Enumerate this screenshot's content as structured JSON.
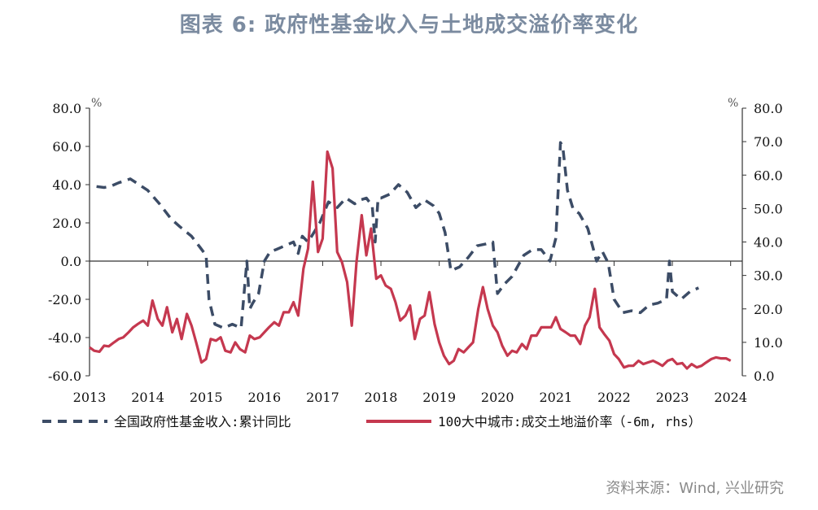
{
  "title": "图表 6: 政府性基金收入与土地成交溢价率变化",
  "source": "资料来源：Wind, 兴业研究",
  "colors": {
    "series1": "#3c4c66",
    "series2": "#c5384f",
    "axis": "#333333"
  },
  "chart_data": {
    "type": "line",
    "left_axis": {
      "unit": "%",
      "ylim": [
        -60,
        80
      ],
      "ticks": [
        "80.0",
        "60.0",
        "40.0",
        "20.0",
        "0.0",
        "-20.0",
        "-40.0",
        "-60.0"
      ]
    },
    "right_axis": {
      "unit": "%",
      "ylim": [
        0,
        80
      ],
      "ticks": [
        "80.0",
        "70.0",
        "60.0",
        "50.0",
        "40.0",
        "30.0",
        "20.0",
        "10.0",
        "0.0"
      ]
    },
    "x_axis": {
      "xlim": [
        2013,
        2024.2
      ],
      "ticks": [
        "2013",
        "2014",
        "2015",
        "2016",
        "2017",
        "2018",
        "2019",
        "2020",
        "2021",
        "2022",
        "2023",
        "2024"
      ]
    },
    "series": [
      {
        "name": "全国政府性基金收入:累计同比",
        "axis": "left",
        "style": "dashed",
        "x": [
          2013.12,
          2013.25,
          2013.35,
          2013.5,
          2013.7,
          2013.85,
          2014.0,
          2014.2,
          2014.4,
          2014.55,
          2014.75,
          2014.9,
          2015.0,
          2015.05,
          2015.15,
          2015.3,
          2015.45,
          2015.6,
          2015.7,
          2015.75,
          2015.8,
          2015.9,
          2016.0,
          2016.1,
          2016.2,
          2016.35,
          2016.5,
          2016.58,
          2016.65,
          2016.75,
          2016.85,
          2016.95,
          2017.1,
          2017.25,
          2017.4,
          2017.55,
          2017.65,
          2017.75,
          2017.85,
          2017.9,
          2017.95,
          2018.0,
          2018.15,
          2018.3,
          2018.45,
          2018.6,
          2018.75,
          2018.9,
          2019.0,
          2019.1,
          2019.2,
          2019.35,
          2019.5,
          2019.65,
          2019.8,
          2019.92,
          2020.0,
          2020.12,
          2020.25,
          2020.45,
          2020.6,
          2020.75,
          2020.9,
          2021.0,
          2021.08,
          2021.12,
          2021.2,
          2021.3,
          2021.4,
          2021.55,
          2021.7,
          2021.8,
          2021.9,
          2022.0,
          2022.15,
          2022.3,
          2022.45,
          2022.6,
          2022.75,
          2022.9,
          2022.95,
          2023.0,
          2023.15,
          2023.3,
          2023.45
        ],
        "values": [
          39,
          38.5,
          39,
          41,
          43,
          40,
          37,
          30,
          22,
          18,
          13,
          7,
          3,
          -20,
          -33,
          -35,
          -33,
          -35,
          0,
          -25,
          -22,
          -17,
          0,
          5,
          6,
          8,
          10,
          4,
          13,
          10,
          15,
          20,
          31,
          28,
          33,
          30,
          32,
          33,
          29,
          10,
          33,
          33,
          35,
          40,
          36,
          28,
          32,
          29,
          25,
          15,
          -5,
          -3,
          2,
          8,
          9,
          10,
          -17,
          -12,
          -8,
          3,
          6,
          6,
          0,
          12,
          62,
          60,
          37,
          27,
          25,
          17,
          0,
          5,
          -1,
          -20,
          -27,
          -26,
          -27,
          -23,
          -22,
          -20,
          0,
          -16,
          -20,
          -16,
          -14
        ]
      },
      {
        "name": "100大中城市:成交土地溢价率（-6m, rhs）",
        "axis": "right",
        "style": "solid",
        "x": [
          2013.0,
          2013.08,
          2013.17,
          2013.25,
          2013.33,
          2013.42,
          2013.5,
          2013.58,
          2013.67,
          2013.75,
          2013.83,
          2013.92,
          2014.0,
          2014.08,
          2014.17,
          2014.25,
          2014.33,
          2014.42,
          2014.5,
          2014.58,
          2014.67,
          2014.75,
          2014.83,
          2014.92,
          2015.0,
          2015.08,
          2015.17,
          2015.25,
          2015.33,
          2015.42,
          2015.5,
          2015.58,
          2015.67,
          2015.75,
          2015.83,
          2015.92,
          2016.0,
          2016.08,
          2016.17,
          2016.25,
          2016.33,
          2016.42,
          2016.5,
          2016.58,
          2016.67,
          2016.75,
          2016.83,
          2016.92,
          2017.0,
          2017.08,
          2017.17,
          2017.25,
          2017.33,
          2017.42,
          2017.5,
          2017.58,
          2017.67,
          2017.75,
          2017.83,
          2017.92,
          2018.0,
          2018.08,
          2018.17,
          2018.25,
          2018.33,
          2018.42,
          2018.5,
          2018.58,
          2018.67,
          2018.75,
          2018.83,
          2018.92,
          2019.0,
          2019.08,
          2019.17,
          2019.25,
          2019.33,
          2019.42,
          2019.5,
          2019.58,
          2019.67,
          2019.75,
          2019.83,
          2019.92,
          2020.0,
          2020.08,
          2020.17,
          2020.25,
          2020.33,
          2020.42,
          2020.5,
          2020.58,
          2020.67,
          2020.75,
          2020.83,
          2020.92,
          2021.0,
          2021.08,
          2021.17,
          2021.25,
          2021.33,
          2021.42,
          2021.5,
          2021.58,
          2021.67,
          2021.75,
          2021.83,
          2021.92,
          2022.0,
          2022.08,
          2022.17,
          2022.25,
          2022.33,
          2022.42,
          2022.5,
          2022.58,
          2022.67,
          2022.75,
          2022.83,
          2022.92,
          2023.0,
          2023.08,
          2023.17,
          2023.25,
          2023.33,
          2023.42,
          2023.5,
          2023.58,
          2023.67,
          2023.75,
          2023.83,
          2023.92,
          2024.0
        ],
        "values": [
          8.5,
          7.5,
          7.2,
          9,
          8.8,
          10,
          11,
          11.5,
          13,
          14.5,
          15.5,
          16.5,
          15,
          22.5,
          17,
          15,
          20.5,
          13,
          17,
          11,
          18.5,
          15,
          10,
          4,
          5,
          11,
          10.5,
          11.5,
          7.5,
          7,
          10,
          8,
          7,
          12,
          11,
          11.5,
          13,
          14.5,
          16,
          15,
          19,
          19,
          22,
          18,
          32,
          38,
          58,
          37,
          41,
          67,
          62,
          37,
          34,
          28,
          15,
          34,
          48,
          36,
          44,
          29,
          30,
          27,
          26,
          22,
          16.5,
          18,
          21,
          11,
          17,
          18,
          25,
          15.5,
          10,
          6,
          3.5,
          4.5,
          8,
          7,
          8.5,
          10,
          20,
          26.5,
          20,
          15,
          13,
          9,
          6,
          7.5,
          7,
          9.5,
          8,
          12,
          12,
          14.5,
          14.5,
          14.5,
          17.5,
          14,
          13,
          12,
          12,
          9.5,
          15,
          17.5,
          26,
          14.5,
          12.5,
          10.5,
          6.5,
          5,
          2.5,
          3,
          3,
          4.5,
          3.5,
          4,
          4.5,
          3.8,
          3,
          4.5,
          5,
          3.5,
          3.8,
          2.2,
          3.5,
          2.5,
          3,
          4,
          5,
          5.5,
          5.2,
          5.2,
          4.5
        ]
      }
    ]
  }
}
